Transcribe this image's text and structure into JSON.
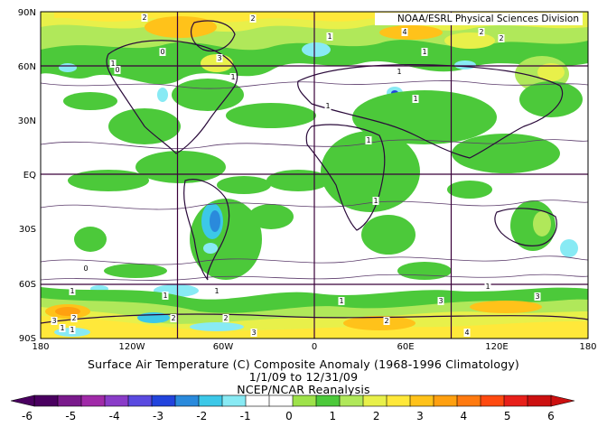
{
  "credit": "NOAA/ESRL Physical Sciences Division",
  "caption": {
    "line1": "Surface Air Temperature (C) Composite Anomaly (1968-1996 Climatology)",
    "line2": "1/1/09  to 12/31/09",
    "line3": "NCEP/NCAR Reanalysis"
  },
  "axes": {
    "lat_labels": [
      "90N",
      "60N",
      "30N",
      "EQ",
      "30S",
      "60S",
      "90S"
    ],
    "lon_labels": [
      "180",
      "120W",
      "60W",
      "0",
      "60E",
      "120E",
      "180"
    ]
  },
  "colorbar": {
    "labels": [
      "-6",
      "-5",
      "-4",
      "-3",
      "-2",
      "-1",
      "0",
      "1",
      "2",
      "3",
      "4",
      "5",
      "6"
    ],
    "colors": [
      "#4a0060",
      "#7a1a8c",
      "#a02aa8",
      "#8a3cc8",
      "#5a4ae0",
      "#2244dd",
      "#2a8adc",
      "#3cc8e8",
      "#88eaf4",
      "#ffffff",
      "#ffffff",
      "#9ee24a",
      "#4cc93a",
      "#b0e85a",
      "#e8f04a",
      "#ffe83a",
      "#ffc21a",
      "#ffa010",
      "#ff7a10",
      "#ff4a10",
      "#e8201a",
      "#cc1010"
    ]
  },
  "contour_labels": [
    "2",
    "2",
    "2",
    "1",
    "3",
    "1",
    "1",
    "4",
    "2",
    "1",
    "1",
    "1",
    "1",
    "1",
    "1",
    "1",
    "0",
    "1",
    "2",
    "1",
    "2",
    "3",
    "1",
    "3",
    "1",
    "1",
    "4",
    "3",
    "2",
    "2",
    "1",
    "3",
    "0",
    "0"
  ]
}
